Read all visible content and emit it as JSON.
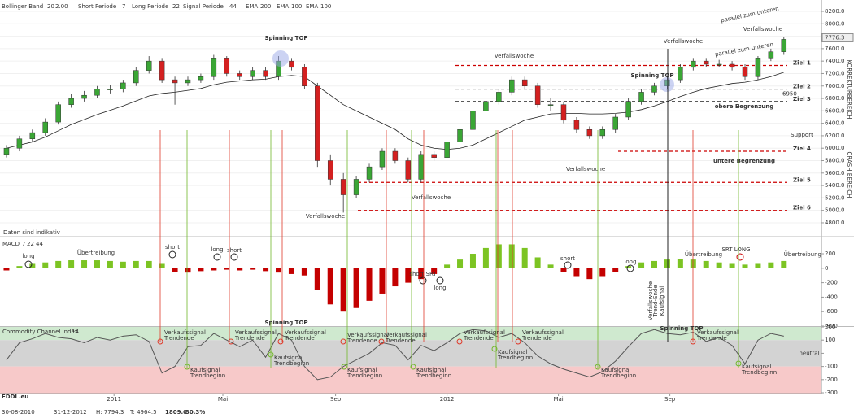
{
  "header": {
    "bollinger": [
      "Bollinger Band",
      "20",
      "2.00"
    ],
    "macd_params": [
      "Short Periode",
      "7",
      "Long Periode",
      "22",
      "Signal Periode",
      "44"
    ],
    "ema": [
      "EMA",
      "200",
      "EMA",
      "100",
      "EMA",
      "100"
    ]
  },
  "chart_data": [
    {
      "type": "candlestick",
      "up_color": "#3aa635",
      "down_color": "#d42020",
      "open": [
        5900,
        6000,
        6150,
        6250,
        6420,
        6700,
        6800,
        6850,
        6950,
        6950,
        7050,
        7250,
        7400,
        7100,
        7050,
        7100,
        7150,
        7450,
        7200,
        7150,
        7250,
        7150,
        7400,
        7300,
        7000,
        5800,
        5500,
        5250,
        5500,
        5700,
        5950,
        5800,
        5500,
        5900,
        5850,
        6100,
        6300,
        6600,
        6750,
        6900,
        7100,
        7000,
        6700,
        6700,
        6450,
        6300,
        6200,
        6300,
        6500,
        6750,
        6900,
        7000,
        7100,
        7300,
        7400,
        7350,
        7350,
        7300,
        7150,
        7450,
        7550
      ],
      "high": [
        6050,
        6200,
        6300,
        6480,
        6750,
        6870,
        6920,
        7000,
        7020,
        7100,
        7300,
        7480,
        7450,
        7150,
        7150,
        7200,
        7500,
        7480,
        7250,
        7300,
        7300,
        7480,
        7450,
        7350,
        7050,
        5900,
        5600,
        5550,
        5750,
        6000,
        6000,
        5850,
        5950,
        5950,
        6150,
        6350,
        6650,
        6800,
        6950,
        7150,
        7150,
        7050,
        6800,
        6750,
        6500,
        6350,
        6350,
        6550,
        6800,
        6950,
        7050,
        7150,
        7350,
        7450,
        7450,
        7420,
        7400,
        7350,
        7480,
        7600,
        7794.3
      ],
      "low": [
        5850,
        5950,
        6100,
        6200,
        6380,
        6650,
        6750,
        6800,
        6880,
        6900,
        7000,
        7200,
        7050,
        6700,
        7000,
        7050,
        7100,
        7150,
        7100,
        7100,
        7100,
        7100,
        7250,
        6950,
        5700,
        5400,
        4964.5,
        5200,
        5450,
        5650,
        5750,
        5450,
        5450,
        5800,
        5800,
        6050,
        6250,
        6550,
        6700,
        6850,
        6950,
        6650,
        6600,
        6400,
        6250,
        6150,
        6150,
        6250,
        6450,
        6700,
        6850,
        6950,
        7050,
        7250,
        7300,
        7300,
        7250,
        7100,
        7100,
        7400,
        7500
      ],
      "close": [
        6000,
        6150,
        6250,
        6420,
        6700,
        6800,
        6850,
        6950,
        6950,
        7050,
        7250,
        7400,
        7100,
        7050,
        7100,
        7150,
        7450,
        7200,
        7150,
        7250,
        7150,
        7400,
        7300,
        7000,
        5800,
        5500,
        5250,
        5500,
        5700,
        5950,
        5800,
        5500,
        5900,
        5850,
        6100,
        6300,
        6600,
        6750,
        6900,
        7100,
        7000,
        6700,
        6700,
        6450,
        6300,
        6200,
        6300,
        6500,
        6750,
        6900,
        7000,
        7100,
        7300,
        7400,
        7350,
        7350,
        7300,
        7150,
        7450,
        7550,
        7750
      ],
      "overlay": {
        "color": "#222222",
        "values": [
          6000,
          6050,
          6100,
          6180,
          6280,
          6380,
          6460,
          6540,
          6610,
          6680,
          6760,
          6840,
          6880,
          6900,
          6930,
          6960,
          7020,
          7060,
          7080,
          7100,
          7110,
          7150,
          7170,
          7150,
          7000,
          6850,
          6700,
          6600,
          6500,
          6400,
          6300,
          6150,
          6050,
          6000,
          5980,
          6000,
          6050,
          6150,
          6250,
          6350,
          6450,
          6500,
          6550,
          6560,
          6560,
          6550,
          6550,
          6560,
          6580,
          6620,
          6680,
          6750,
          6830,
          6900,
          6960,
          7000,
          7040,
          7060,
          7100,
          7150,
          7220
        ]
      },
      "xlim": [
        -0.5,
        62.9
      ],
      "ylim": [
        4695,
        8383
      ],
      "xticks": [
        {
          "value": 8.3,
          "label": "2011"
        },
        {
          "value": 16.7,
          "label": "Mai"
        },
        {
          "value": 25.4,
          "label": "Sep"
        },
        {
          "value": 34,
          "label": "2012"
        },
        {
          "value": 42.6,
          "label": "Mai"
        },
        {
          "value": 51.2,
          "label": "Sep"
        }
      ],
      "yticks": [
        {
          "value": 4800,
          "label": "4800.0"
        },
        {
          "value": 5000,
          "label": "5000.0"
        },
        {
          "value": 5200,
          "label": "5200.0"
        },
        {
          "value": 5400,
          "label": "5400.0"
        },
        {
          "value": 5600,
          "label": "5600.0"
        },
        {
          "value": 5800,
          "label": "5800.0"
        },
        {
          "value": 6000,
          "label": "6000.0"
        },
        {
          "value": 6200,
          "label": "6200.0"
        },
        {
          "value": 6400,
          "label": "6400.0"
        },
        {
          "value": 6600,
          "label": "6600.0"
        },
        {
          "value": 6800,
          "label": "6800.0"
        },
        {
          "value": 7000,
          "label": "7000.0"
        },
        {
          "value": 7200,
          "label": "7200.0"
        },
        {
          "value": 7400,
          "label": "7400.0"
        },
        {
          "value": 7600,
          "label": "7600.0"
        },
        {
          "value": 7800,
          "label": "7800.0"
        },
        {
          "value": 8000,
          "label": "8000.0"
        },
        {
          "value": 8200,
          "label": "8200.0"
        }
      ],
      "last_price": 7776.3,
      "levels": [
        {
          "label": "Ziel 1",
          "value": 7330,
          "color": "#cc0000"
        },
        {
          "label": "Ziel 2",
          "value": 6950,
          "color": "#222222"
        },
        {
          "label": "Ziel 3",
          "value": 6750,
          "color": "#222222"
        },
        {
          "label": "Ziel 4",
          "value": 5950,
          "color": "#cc0000"
        },
        {
          "label": "Ziel 5",
          "value": 5450,
          "color": "#cc0000"
        },
        {
          "label": "Ziel 6",
          "value": 5000,
          "color": "#cc0000"
        }
      ],
      "annotations": [
        "Spinning TOP",
        "Verfallswoche",
        "Verfallswoche",
        "Verfallswoche",
        "Verfallswoche",
        "Verfallswoche",
        "Verfallswoche",
        "Spinning TOP",
        "parallel zum unteren",
        "parallel zum unteren",
        "obere Begrenzung",
        "untere Begrenzung",
        "Support",
        "Daten sind indikativ",
        "KORREKTURBEREICH",
        "CRASH BEREICH"
      ]
    },
    {
      "type": "bar",
      "title": [
        "MACD",
        "7",
        "22",
        "44"
      ],
      "pos_color": "#7cc423",
      "neg_color": "#c40000",
      "values": [
        -30,
        30,
        60,
        80,
        100,
        110,
        110,
        110,
        100,
        90,
        100,
        100,
        60,
        -50,
        -60,
        -40,
        -30,
        -20,
        -30,
        -20,
        -40,
        -60,
        -80,
        -100,
        -300,
        -500,
        -600,
        -550,
        -450,
        -350,
        -250,
        -200,
        -150,
        -80,
        50,
        120,
        200,
        280,
        330,
        330,
        280,
        150,
        50,
        -50,
        -120,
        -150,
        -120,
        -50,
        30,
        80,
        100,
        120,
        130,
        120,
        100,
        80,
        60,
        50,
        60,
        80,
        100
      ],
      "ylim": [
        -800,
        425
      ],
      "yticks": [
        200,
        0,
        -200,
        -400,
        -600,
        -800
      ],
      "annotations": [
        "long",
        "short",
        "long",
        "short",
        "Übertreibung",
        "short SRT",
        "long",
        "short",
        "long",
        "Übertreibung",
        "SRT LONG",
        "Übertreibung",
        "Verfallswoche",
        "Trend-Ende",
        "Kaufsignal"
      ]
    },
    {
      "type": "line",
      "title": [
        "Commodity Channel Index",
        "14"
      ],
      "color": "#555555",
      "values": [
        -50,
        80,
        110,
        150,
        120,
        110,
        80,
        120,
        100,
        130,
        140,
        90,
        -150,
        -100,
        50,
        60,
        150,
        100,
        50,
        100,
        -30,
        150,
        100,
        -100,
        -200,
        -180,
        -100,
        -50,
        0,
        80,
        60,
        -50,
        60,
        20,
        80,
        150,
        180,
        170,
        120,
        150,
        80,
        -20,
        -80,
        -120,
        -150,
        -180,
        -140,
        -60,
        50,
        150,
        180,
        150,
        140,
        160,
        90,
        120,
        60,
        -80,
        100,
        150,
        130
      ],
      "ylim": [
        -306,
        200
      ],
      "yticks": [
        200,
        100,
        {
          "value": 0,
          "label": "neutral"
        },
        -100,
        -200,
        -300
      ],
      "bands": [
        {
          "from": 100,
          "to": 200,
          "color": "#cfe9cf"
        },
        {
          "from": -100,
          "to": 100,
          "color": "#d3d3d3"
        },
        {
          "from": -306,
          "to": -100,
          "color": "#f7c9c9"
        }
      ],
      "sell_color": "#e03a2a",
      "buy_color": "#72b82a",
      "sell_signals": [
        [
          "Verkaufssignal",
          "Trendende"
        ],
        [
          "Verkaufssignal",
          "Trendende"
        ],
        [
          "Verkaufssignal",
          "Trendende"
        ],
        [
          "Verkaufssignal",
          "Trendende"
        ],
        [
          "Verkaufssignal",
          "Trendende"
        ],
        [
          "Verkaufssignal",
          "Trendende"
        ],
        [
          "Verkaufssignal",
          "Trendende"
        ],
        [
          "Verkaufssignal",
          "Trendende"
        ]
      ],
      "buy_signals": [
        [
          "Kaufsignal",
          "Trendbeginn"
        ],
        [
          "Kaufsignal",
          "Trendbeginn"
        ],
        [
          "Kaufsignal",
          "Trendbeginn"
        ],
        [
          "Kaufsignal",
          "Trendbeginn"
        ],
        [
          "Kaufsignal",
          "Trendbeginn"
        ],
        [
          "Kaufsignal",
          "Trendbeginn"
        ],
        [
          "Kaufsignal",
          "Trendbeginn"
        ]
      ],
      "annotations": [
        "Spinning TOP",
        "Spinning TOP"
      ]
    }
  ],
  "logo": "EDDL.eu",
  "status": {
    "from": "30-08-2010",
    "to": "31-12-2012",
    "high": "H: 7794.3",
    "low": "T: 4964.5",
    "change": "1809.0",
    "change_pct": "30.3%"
  }
}
